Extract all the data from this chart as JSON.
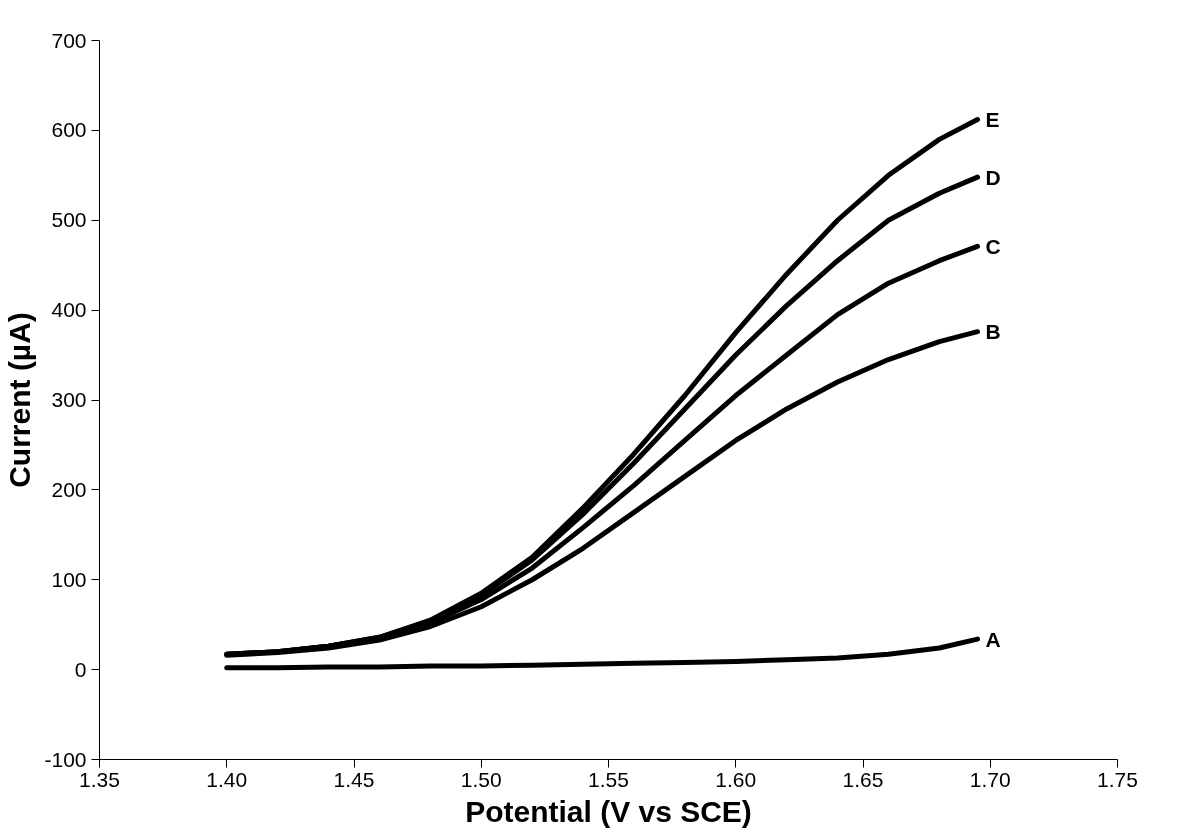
{
  "chart_data": {
    "type": "line",
    "xlabel": "Potential (V vs SCE)",
    "ylabel": "Current (µA)",
    "x": [
      1.4,
      1.42,
      1.44,
      1.46,
      1.48,
      1.5,
      1.52,
      1.54,
      1.56,
      1.58,
      1.6,
      1.62,
      1.64,
      1.66,
      1.68,
      1.695
    ],
    "series": [
      {
        "name": "A",
        "color": "#000000",
        "values": [
          2,
          2,
          3,
          3,
          4,
          4,
          5,
          6,
          7,
          8,
          9,
          11,
          13,
          17,
          24,
          34
        ]
      },
      {
        "name": "B",
        "color": "#000000",
        "values": [
          16,
          19,
          24,
          33,
          48,
          70,
          100,
          135,
          175,
          215,
          255,
          290,
          320,
          345,
          365,
          376
        ]
      },
      {
        "name": "C",
        "color": "#000000",
        "values": [
          17,
          20,
          26,
          35,
          52,
          78,
          113,
          158,
          205,
          255,
          305,
          350,
          395,
          430,
          455,
          471
        ]
      },
      {
        "name": "D",
        "color": "#000000",
        "values": [
          17,
          20,
          26,
          36,
          54,
          83,
          122,
          173,
          230,
          290,
          350,
          405,
          455,
          500,
          530,
          548
        ]
      },
      {
        "name": "E",
        "color": "#000000",
        "values": [
          17,
          20,
          26,
          36,
          55,
          85,
          125,
          180,
          240,
          305,
          375,
          440,
          500,
          550,
          590,
          612
        ]
      }
    ],
    "xlim": [
      1.35,
      1.75
    ],
    "xticks": [
      {
        "value": 1.35,
        "label": "1.35"
      },
      {
        "value": 1.4,
        "label": "1.40"
      },
      {
        "value": 1.45,
        "label": "1.45"
      },
      {
        "value": 1.5,
        "label": "1.50"
      },
      {
        "value": 1.55,
        "label": "1.55"
      },
      {
        "value": 1.6,
        "label": "1.60"
      },
      {
        "value": 1.65,
        "label": "1.65"
      },
      {
        "value": 1.7,
        "label": "1.70"
      },
      {
        "value": 1.75,
        "label": "1.75"
      }
    ],
    "ylim": [
      -100,
      700
    ],
    "yticks": [
      -100,
      0,
      100,
      200,
      300,
      400,
      500,
      600,
      700
    ],
    "grid": false,
    "legend": false,
    "marker": "none",
    "line_style": "solid"
  }
}
